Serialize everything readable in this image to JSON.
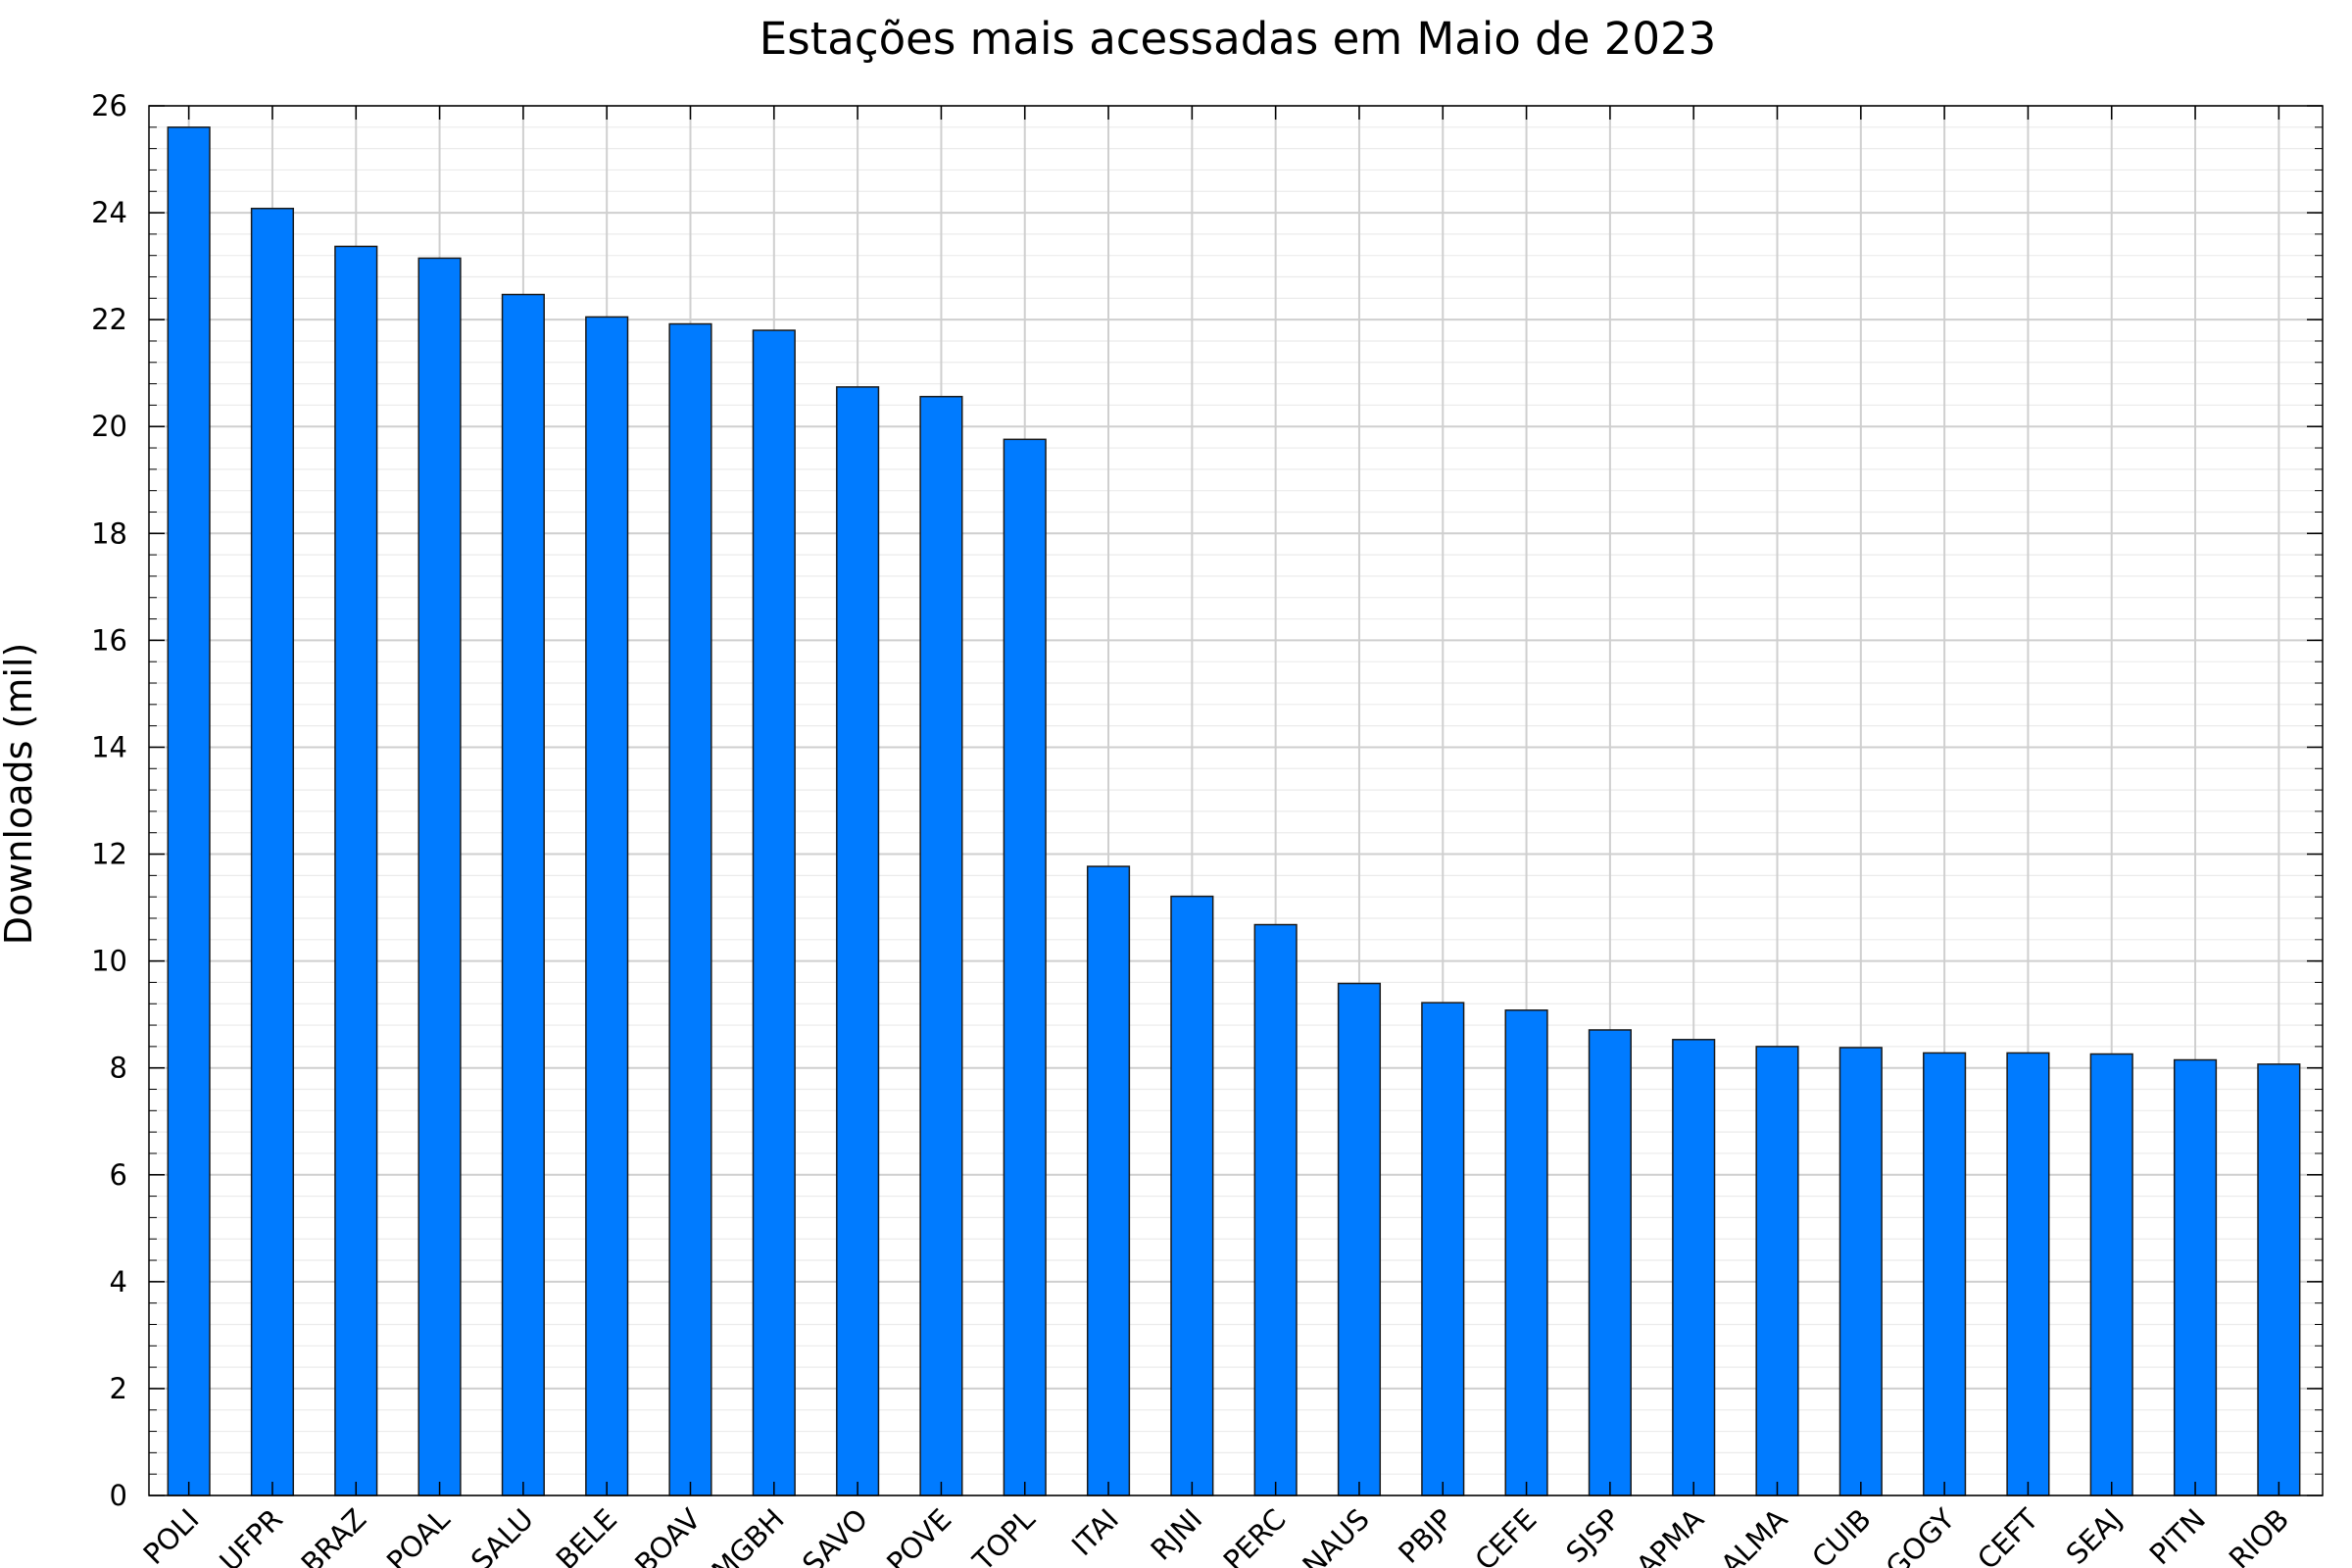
{
  "chart_data": {
    "type": "bar",
    "title": "Estações mais acessadas em Maio de 2023",
    "xlabel": "",
    "ylabel": "Downloads (mil)",
    "ylim": [
      0,
      26
    ],
    "yticks": [
      0,
      2,
      4,
      6,
      8,
      10,
      12,
      14,
      16,
      18,
      20,
      22,
      24,
      26
    ],
    "grid": true,
    "legend": "none",
    "bar_color": "#007bff",
    "categories": [
      "POLI",
      "UFPR",
      "BRAZ",
      "POAL",
      "SALU",
      "BELE",
      "BOAV",
      "MGBH",
      "SAVO",
      "POVE",
      "TOPL",
      "ITAI",
      "RJNI",
      "PERC",
      "NAUS",
      "PBJP",
      "CEFE",
      "SJSP",
      "APMA",
      "ALMA",
      "CUIB",
      "GOGY",
      "CEFT",
      "SEAJ",
      "PITN",
      "RIOB"
    ],
    "values": [
      25.6,
      24.08,
      23.37,
      23.15,
      22.47,
      22.05,
      21.92,
      21.8,
      20.74,
      20.56,
      19.76,
      11.77,
      11.21,
      10.68,
      9.58,
      9.22,
      9.08,
      8.71,
      8.53,
      8.4,
      8.38,
      8.28,
      8.28,
      8.26,
      8.15,
      8.07
    ]
  }
}
